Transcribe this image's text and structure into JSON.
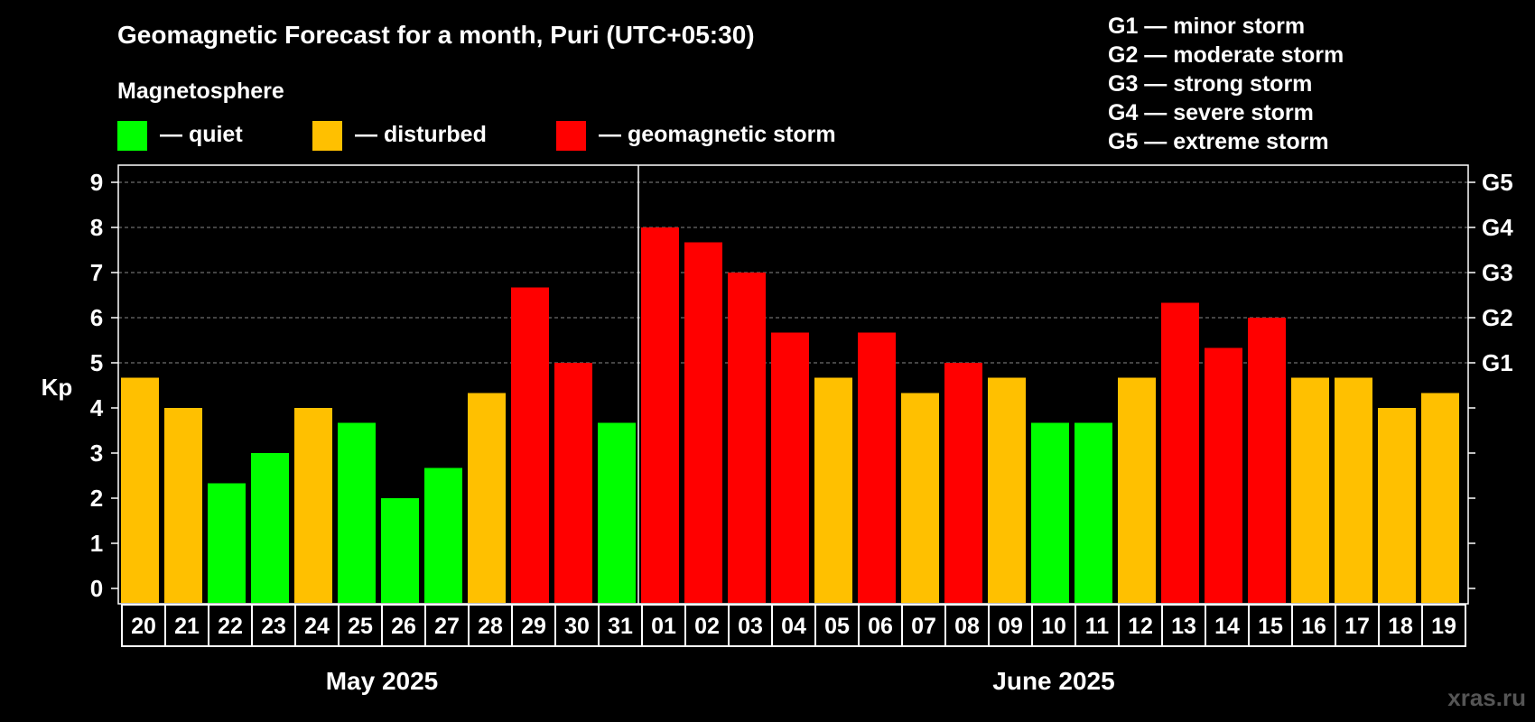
{
  "chart_data": {
    "type": "bar",
    "title": "Geomagnetic Forecast for a month, Puri (UTC+05:30)",
    "legend_title": "Magnetosphere",
    "legend": [
      {
        "label": "— quiet",
        "color": "#00ff00"
      },
      {
        "label": "— disturbed",
        "color": "#ffc000"
      },
      {
        "label": "— geomagnetic storm",
        "color": "#ff0000"
      }
    ],
    "g_scale": [
      "G1 — minor storm",
      "G2 — moderate storm",
      "G3 — strong storm",
      "G4 — severe storm",
      "G5 — extreme storm"
    ],
    "ylabel": "Kp",
    "ylim": [
      0,
      9
    ],
    "yticks": [
      "0",
      "1",
      "2",
      "3",
      "4",
      "5",
      "6",
      "7",
      "8",
      "9"
    ],
    "right_ticks": [
      {
        "label": "G1",
        "kp": 5
      },
      {
        "label": "G2",
        "kp": 6
      },
      {
        "label": "G3",
        "kp": 7
      },
      {
        "label": "G4",
        "kp": 8
      },
      {
        "label": "G5",
        "kp": 9
      }
    ],
    "categories": [
      "20",
      "21",
      "22",
      "23",
      "24",
      "25",
      "26",
      "27",
      "28",
      "29",
      "30",
      "31",
      "01",
      "02",
      "03",
      "04",
      "05",
      "06",
      "07",
      "08",
      "09",
      "10",
      "11",
      "12",
      "13",
      "14",
      "15",
      "16",
      "17",
      "18",
      "19"
    ],
    "values": [
      4.67,
      4.0,
      2.33,
      3.0,
      4.0,
      3.67,
      2.0,
      2.67,
      4.33,
      6.67,
      5.0,
      3.67,
      8.0,
      7.67,
      7.0,
      5.67,
      4.67,
      5.67,
      4.33,
      5.0,
      4.67,
      3.67,
      3.67,
      4.67,
      6.33,
      5.33,
      6.0,
      4.67,
      4.67,
      4.0,
      4.33
    ],
    "status": [
      "disturbed",
      "disturbed",
      "quiet",
      "quiet",
      "disturbed",
      "quiet",
      "quiet",
      "quiet",
      "disturbed",
      "storm",
      "storm",
      "quiet",
      "storm",
      "storm",
      "storm",
      "storm",
      "disturbed",
      "storm",
      "disturbed",
      "storm",
      "disturbed",
      "quiet",
      "quiet",
      "disturbed",
      "storm",
      "storm",
      "storm",
      "disturbed",
      "disturbed",
      "disturbed",
      "disturbed"
    ],
    "months": [
      {
        "label": "May 2025",
        "days": 12
      },
      {
        "label": "June 2025",
        "days": 19
      }
    ],
    "grid": true
  },
  "colors": {
    "quiet": "#00ff00",
    "disturbed": "#ffc000",
    "storm": "#ff0000"
  },
  "brand": "xras.ru"
}
